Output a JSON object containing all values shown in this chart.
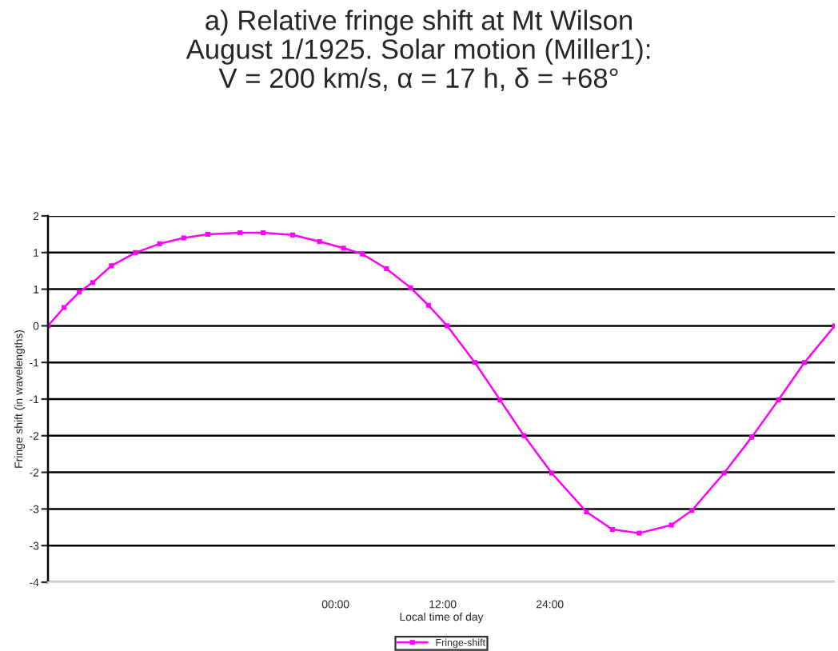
{
  "chart_data": {
    "type": "line",
    "title": "a) Relative fringe shift at Mt Wilson\nAugust 1/1925. Solar motion (Miller1):\nV = 200 km/s, α = 17 h, δ = +68°",
    "xlabel": "Local time of day",
    "ylabel": "Fringe shift (in wavelengths)",
    "series": [
      {
        "name": "Fringe-shift",
        "color": "#ff00ff",
        "x": [
          -32.2,
          -30.4,
          -28.7,
          -27.2,
          -25.1,
          -22.4,
          -19.7,
          -17.0,
          -14.3,
          -10.7,
          -8.1,
          -4.8,
          -1.8,
          0.9,
          3.0,
          5.7,
          8.4,
          10.4,
          12.5,
          15.6,
          18.4,
          21.1,
          24.2,
          28.1,
          31.0,
          34.0,
          37.6,
          39.9,
          43.5,
          46.6,
          49.6,
          52.5,
          55.9
        ],
        "values": [
          0,
          0.25,
          0.46,
          0.59,
          0.82,
          1.0,
          1.12,
          1.2,
          1.25,
          1.27,
          1.27,
          1.24,
          1.15,
          1.06,
          0.98,
          0.78,
          0.52,
          0.28,
          0,
          -0.5,
          -1.01,
          -1.5,
          -2.01,
          -2.54,
          -2.78,
          -2.83,
          -2.72,
          -2.52,
          -2.01,
          -1.52,
          -1.01,
          -0.5,
          0
        ]
      }
    ],
    "xlim": [
      -32.2,
      55.9
    ],
    "xticks": [
      {
        "value": 0,
        "label": "00:00"
      },
      {
        "value": 12,
        "label": "12:00"
      },
      {
        "value": 24,
        "label": "24:00"
      }
    ],
    "ylim": [
      -3.5,
      1.5
    ],
    "yticks": [
      {
        "value": -3.5,
        "label": "-4"
      },
      {
        "value": -3,
        "label": "-3"
      },
      {
        "value": -2.5,
        "label": "-3"
      },
      {
        "value": -2,
        "label": "-2"
      },
      {
        "value": -1.5,
        "label": "-2"
      },
      {
        "value": -1,
        "label": "-1"
      },
      {
        "value": -0.5,
        "label": "-1"
      },
      {
        "value": 0,
        "label": "0"
      },
      {
        "value": 0.5,
        "label": "1"
      },
      {
        "value": 1,
        "label": "1"
      },
      {
        "value": 1.5,
        "label": "2"
      }
    ],
    "grid": "y",
    "legend": "bottom",
    "marker": "square",
    "line_style": "solid"
  }
}
